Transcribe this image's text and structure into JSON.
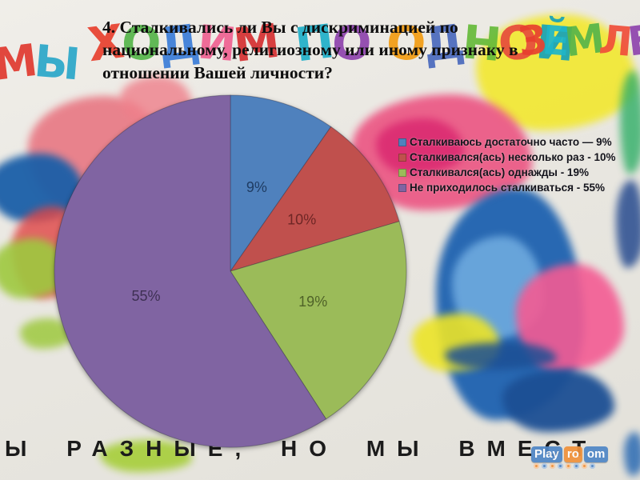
{
  "chart_data": {
    "type": "pie",
    "title": "4. Сталкивались ли Вы с дискриминацией по национальному, религиозному или иному признаку в отношении Вашей личности?",
    "categories": [
      "Сталкиваюсь достаточно часто",
      "Сталкивался(ась) несколько раз",
      "Сталкивался(ась) однажды",
      "Не приходилось сталкиваться"
    ],
    "values": [
      9,
      10,
      19,
      55
    ],
    "slice_labels": [
      "9%",
      "10%",
      "19%",
      "55%"
    ],
    "colors": [
      "#4f81bd",
      "#c0504d",
      "#9bbb59",
      "#8064a2"
    ],
    "label_colors": [
      "#1f3c63",
      "#6e2625",
      "#4f6228",
      "#3e3054"
    ],
    "legend_entries": [
      "Сталкиваюсь достаточно часто — 9%",
      "Сталкивался(ась) несколько раз - 10%",
      "Сталкивался(ась) однажды - 19%",
      "Не приходилось сталкиваться - 55%"
    ],
    "legend_position": "right",
    "start_angle_deg": 0,
    "direction": "clockwise"
  },
  "background": {
    "letters_top_left": [
      {
        "ch": "М",
        "color": "#e03a2f"
      },
      {
        "ch": "Ы",
        "color": "#2aa7c9"
      }
    ],
    "letters_top_mid": [
      {
        "ch": "Х",
        "color": "#e8402e"
      },
      {
        "ch": "О",
        "color": "#56b54a"
      },
      {
        "ch": "Д",
        "color": "#3b7dd8"
      },
      {
        "ch": "И",
        "color": "#f06292"
      },
      {
        "ch": "М",
        "color": "#d63031"
      },
      {
        "ch": " ",
        "color": ""
      },
      {
        "ch": "П",
        "color": "#1fb0c9"
      },
      {
        "ch": "О",
        "color": "#8e44ad"
      },
      {
        "ch": " ",
        "color": ""
      },
      {
        "ch": "О",
        "color": "#f39c12"
      },
      {
        "ch": "Д",
        "color": "#4a69bd"
      },
      {
        "ch": "Н",
        "color": "#66bb3a"
      },
      {
        "ch": "О",
        "color": "#e74c3c"
      },
      {
        "ch": "Й",
        "color": "#17a2b8"
      }
    ],
    "letters_top_right": [
      {
        "ch": "З",
        "color": "#e8402e"
      },
      {
        "ch": "Е",
        "color": "#1fb6c9"
      },
      {
        "ch": "М",
        "color": "#56b54a"
      },
      {
        "ch": "Л",
        "color": "#f04e3a"
      },
      {
        "ch": "Е",
        "color": "#8e44ad"
      }
    ],
    "bottom_phrase": "Ы РАЗНЫЕ, НО МЫ ВМЕСТ"
  },
  "watermark": {
    "segments": [
      {
        "text": "Play",
        "bg": "#4f86c6"
      },
      {
        "text": "ro",
        "bg": "#f0913a"
      },
      {
        "text": "om",
        "bg": "#4f86c6"
      }
    ],
    "wheel_colors": [
      "#f0913a",
      "#4f86c6"
    ],
    "wheel_count": 8
  }
}
